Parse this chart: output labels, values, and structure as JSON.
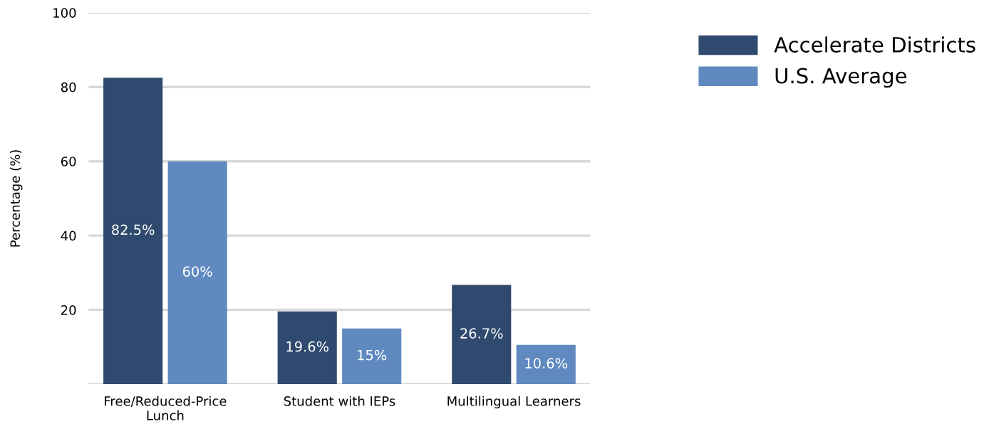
{
  "chart_data": {
    "type": "bar",
    "ylabel": "Percentage (%)",
    "categories": [
      "Free/Reduced-Price\nLunch",
      "Student with IEPs",
      "Multilingual Learners"
    ],
    "series": [
      {
        "name": "Accelerate Districts",
        "color": "#2f4a6e",
        "values": [
          82.5,
          19.6,
          26.7
        ],
        "value_labels": [
          "82.5%",
          "19.6%",
          "26.7%"
        ]
      },
      {
        "name": "U.S. Average",
        "color": "#6089c0",
        "values": [
          60,
          15,
          10.6
        ],
        "value_labels": [
          "60%",
          "15%",
          "10.6%"
        ]
      }
    ],
    "ylim": [
      0,
      100
    ],
    "yticks": [
      {
        "value": 0,
        "label": null
      },
      20,
      40,
      60,
      80,
      100
    ],
    "grid": "y",
    "legend": "top right"
  }
}
